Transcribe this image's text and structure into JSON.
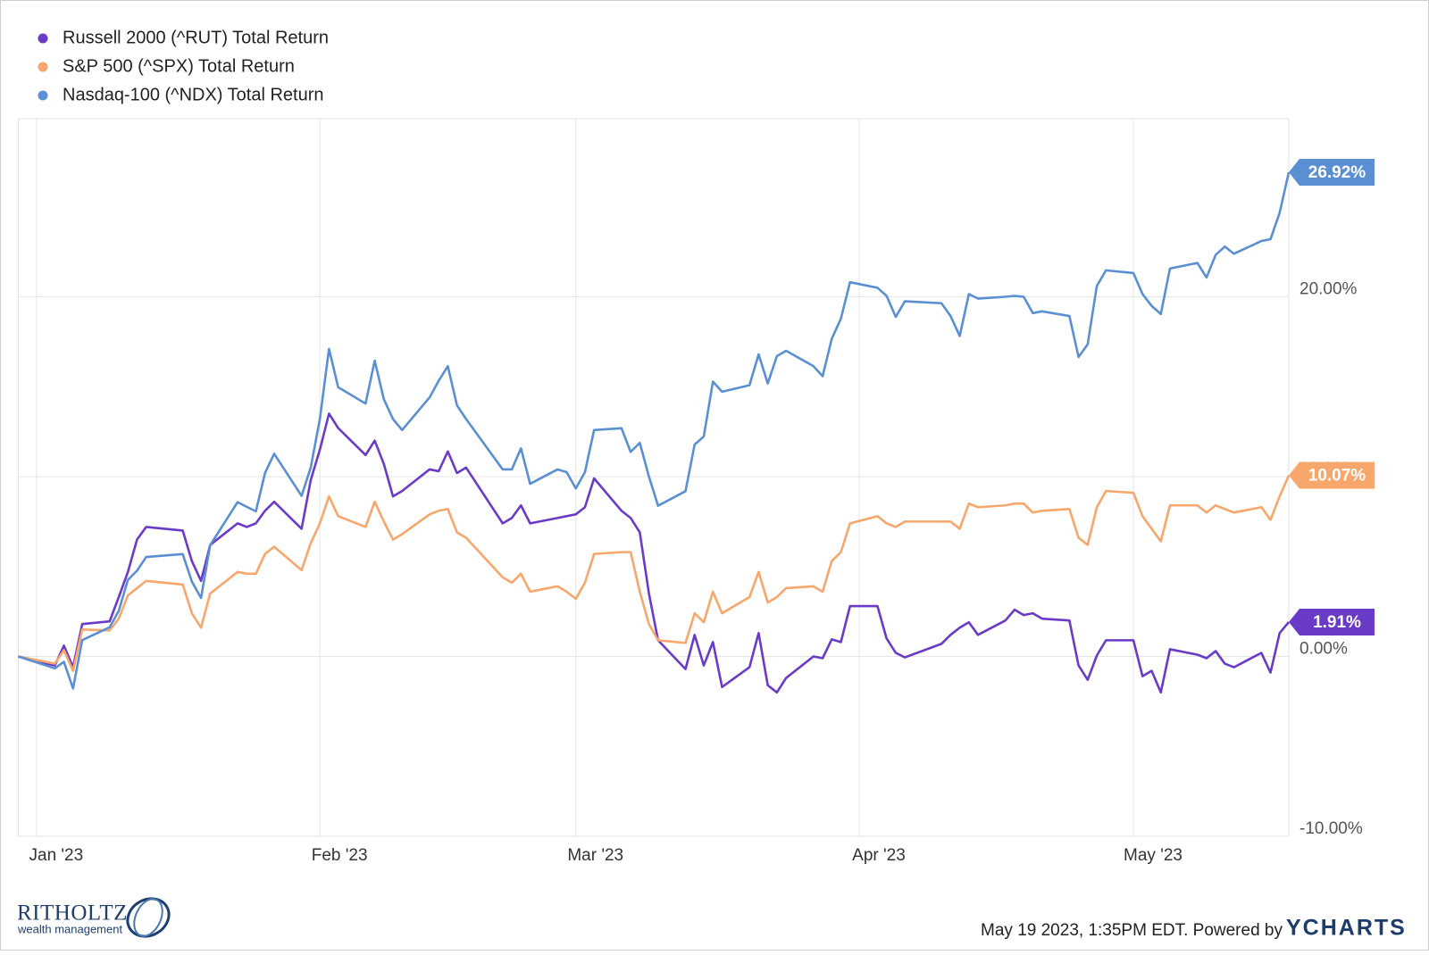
{
  "chart_data": {
    "type": "line",
    "x": [
      -2,
      2,
      3,
      4,
      5,
      8,
      9,
      10,
      11,
      12,
      16,
      17,
      18,
      19,
      22,
      23,
      24,
      25,
      26,
      29,
      30,
      31,
      32,
      33,
      36,
      37,
      38,
      39,
      40,
      43,
      44,
      45,
      46,
      47,
      51,
      52,
      53,
      54,
      57,
      58,
      59,
      60,
      61,
      64,
      65,
      66,
      67,
      68,
      71,
      72,
      73,
      74,
      75,
      78,
      79,
      80,
      81,
      82,
      85,
      86,
      87,
      88,
      89,
      92,
      93,
      94,
      95,
      99,
      100,
      101,
      102,
      103,
      106,
      107,
      108,
      109,
      110,
      113,
      114,
      115,
      116,
      117,
      120,
      121,
      122,
      123,
      124,
      127,
      128,
      129,
      130,
      131,
      134,
      135,
      136,
      137
    ],
    "xlim": [
      -2,
      137
    ],
    "xticks": [
      {
        "value": 0,
        "label": "Jan '23"
      },
      {
        "value": 31,
        "label": "Feb '23"
      },
      {
        "value": 59,
        "label": "Mar '23"
      },
      {
        "value": 90,
        "label": "Apr '23"
      },
      {
        "value": 120,
        "label": "May '23"
      }
    ],
    "ylim": [
      -10,
      30
    ],
    "yticks": [
      {
        "value": -10,
        "label": "-10.00%"
      },
      {
        "value": 0,
        "label": "0.00%"
      },
      {
        "value": 10,
        "label": "10.00%"
      },
      {
        "value": 20,
        "label": "20.00%"
      }
    ],
    "grid": true,
    "legend": "top-left",
    "series": [
      {
        "name": "Russell 2000 (^RUT) Total Return",
        "color": "#6a3bc6",
        "values": [
          0,
          -0.5,
          0.6,
          -0.6,
          1.8,
          1.95,
          3.3,
          4.7,
          6.5,
          7.2,
          7.0,
          5.3,
          4.2,
          6.2,
          7.4,
          7.2,
          7.4,
          8.1,
          8.6,
          7.1,
          9.8,
          11.5,
          13.5,
          12.7,
          11.2,
          12.0,
          10.7,
          8.9,
          9.2,
          10.4,
          10.3,
          11.4,
          10.2,
          10.5,
          7.4,
          7.7,
          8.4,
          7.4,
          7.7,
          7.8,
          7.9,
          8.3,
          9.9,
          8.1,
          7.7,
          6.9,
          3.5,
          0.9,
          -0.7,
          1.2,
          -0.5,
          0.8,
          -1.7,
          -0.6,
          1.3,
          -1.6,
          -2.0,
          -1.2,
          0.0,
          -0.1,
          0.95,
          0.8,
          2.8,
          2.8,
          1.0,
          0.2,
          -0.05,
          0.7,
          1.2,
          1.6,
          1.9,
          1.2,
          2.0,
          2.6,
          2.3,
          2.4,
          2.1,
          2.0,
          -0.5,
          -1.3,
          0.05,
          0.9,
          0.9,
          -1.1,
          -0.8,
          -2.0,
          0.4,
          0.1,
          -0.1,
          0.3,
          -0.4,
          -0.6,
          0.2,
          -0.9,
          1.3,
          1.91
        ],
        "value_labels": [
          null,
          null,
          null,
          null,
          null,
          null,
          null,
          null,
          null,
          null,
          null,
          null,
          null,
          null,
          null,
          null,
          null,
          null,
          null,
          null,
          null,
          null,
          null,
          null,
          null,
          null,
          null,
          null,
          null,
          null,
          null,
          null,
          null,
          null,
          null,
          null,
          null,
          null,
          null,
          null,
          null,
          null,
          null,
          null,
          null,
          null,
          null,
          null,
          null,
          null,
          null,
          null,
          null,
          null,
          null,
          null,
          null,
          null,
          null,
          null,
          null,
          null,
          null,
          null,
          null,
          null,
          null,
          null,
          null,
          null,
          null,
          null,
          null,
          null,
          null,
          null,
          null,
          null,
          null,
          null,
          null,
          null,
          null,
          null,
          null,
          null,
          null,
          null,
          null,
          null,
          null,
          null,
          null,
          null,
          null,
          "1.91%"
        ]
      },
      {
        "name": "S&P 500 (^SPX) Total Return",
        "color": "#f7a66c",
        "values": [
          0,
          -0.4,
          0.35,
          -0.8,
          1.5,
          1.45,
          2.1,
          3.4,
          3.8,
          4.2,
          4.0,
          2.4,
          1.6,
          3.5,
          4.7,
          4.6,
          4.6,
          5.7,
          6.1,
          4.8,
          6.3,
          7.4,
          8.9,
          7.8,
          7.2,
          8.6,
          7.5,
          6.5,
          6.8,
          7.9,
          8.1,
          8.2,
          6.9,
          6.6,
          4.4,
          4.1,
          4.6,
          3.6,
          3.9,
          3.6,
          3.2,
          4.1,
          5.7,
          5.8,
          5.8,
          3.6,
          1.8,
          0.9,
          0.75,
          2.4,
          1.9,
          3.6,
          2.4,
          3.3,
          4.7,
          3.0,
          3.3,
          3.8,
          3.9,
          3.6,
          5.3,
          5.8,
          7.4,
          7.8,
          7.4,
          7.2,
          7.5,
          7.5,
          7.5,
          7.1,
          8.5,
          8.3,
          8.4,
          8.5,
          8.5,
          8.0,
          8.1,
          8.2,
          6.6,
          6.2,
          8.3,
          9.2,
          9.1,
          7.8,
          7.1,
          6.4,
          8.4,
          8.4,
          8.0,
          8.4,
          8.2,
          8.0,
          8.3,
          7.6,
          8.9,
          10.07
        ],
        "value_labels": [
          null,
          null,
          null,
          null,
          null,
          null,
          null,
          null,
          null,
          null,
          null,
          null,
          null,
          null,
          null,
          null,
          null,
          null,
          null,
          null,
          null,
          null,
          null,
          null,
          null,
          null,
          null,
          null,
          null,
          null,
          null,
          null,
          null,
          null,
          null,
          null,
          null,
          null,
          null,
          null,
          null,
          null,
          null,
          null,
          null,
          null,
          null,
          null,
          null,
          null,
          null,
          null,
          null,
          null,
          null,
          null,
          null,
          null,
          null,
          null,
          null,
          null,
          null,
          null,
          null,
          null,
          null,
          null,
          null,
          null,
          null,
          null,
          null,
          null,
          null,
          null,
          null,
          null,
          null,
          null,
          null,
          null,
          null,
          null,
          null,
          null,
          null,
          null,
          null,
          null,
          null,
          null,
          null,
          null,
          null,
          "10.07%"
        ]
      },
      {
        "name": "Nasdaq-100 (^NDX) Total Return",
        "color": "#5b8fd3",
        "values": [
          0,
          -0.66,
          -0.3,
          -1.78,
          0.91,
          1.62,
          2.54,
          4.26,
          4.77,
          5.53,
          5.69,
          4.16,
          3.25,
          6.19,
          8.58,
          8.32,
          8.07,
          10.2,
          11.27,
          8.93,
          10.5,
          13.2,
          17.1,
          14.97,
          14.06,
          16.45,
          14.3,
          13.2,
          12.59,
          14.4,
          15.33,
          16.14,
          13.96,
          13.2,
          10.4,
          10.4,
          11.57,
          9.6,
          10.4,
          10.25,
          9.34,
          10.25,
          12.59,
          12.69,
          11.37,
          11.88,
          10.0,
          8.38,
          9.19,
          11.78,
          12.23,
          15.28,
          14.72,
          15.08,
          16.8,
          15.18,
          16.7,
          17.0,
          16.14,
          15.58,
          17.66,
          18.78,
          20.81,
          20.5,
          20.05,
          18.88,
          19.75,
          19.64,
          18.93,
          17.82,
          20.15,
          19.9,
          20.0,
          20.05,
          20.0,
          19.09,
          19.19,
          18.93,
          16.65,
          17.36,
          20.6,
          21.47,
          21.32,
          20.15,
          19.49,
          19.04,
          21.57,
          21.88,
          21.07,
          22.33,
          22.79,
          22.39,
          23.1,
          23.2,
          24.67,
          26.92
        ],
        "value_labels": [
          null,
          null,
          null,
          null,
          null,
          null,
          null,
          null,
          null,
          null,
          null,
          null,
          null,
          null,
          null,
          null,
          null,
          null,
          null,
          null,
          null,
          null,
          null,
          null,
          null,
          null,
          null,
          null,
          null,
          null,
          null,
          null,
          null,
          null,
          null,
          null,
          null,
          null,
          null,
          null,
          null,
          null,
          null,
          null,
          null,
          null,
          null,
          null,
          null,
          null,
          null,
          null,
          null,
          null,
          null,
          null,
          null,
          null,
          null,
          null,
          null,
          null,
          null,
          null,
          null,
          null,
          null,
          null,
          null,
          null,
          null,
          null,
          null,
          null,
          null,
          null,
          null,
          null,
          null,
          null,
          null,
          null,
          null,
          null,
          null,
          null,
          null,
          null,
          null,
          null,
          null,
          null,
          null,
          null,
          null,
          "26.92%"
        ]
      }
    ]
  },
  "footer": {
    "logo": "RITHOLTZ",
    "logo_sub": "wealth management",
    "timestamp": "May 19 2023, 1:35PM EDT. Powered by",
    "brand": "YCHARTS"
  }
}
